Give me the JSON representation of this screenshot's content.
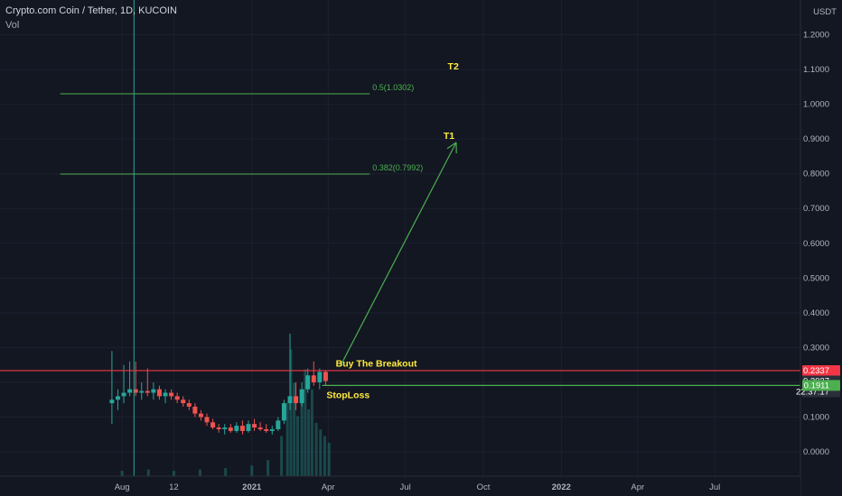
{
  "header": {
    "symbol": "Crypto.com Coin / Tether, 1D, KUCOIN",
    "indicator": "Vol"
  },
  "currency": "USDT",
  "colors": {
    "background": "#131722",
    "grid": "#1c2030",
    "axis_text": "#b2b5be",
    "up": "#26a69a",
    "down": "#ef5350",
    "fib": "#4caf50",
    "annotation_text": "#ffeb3b",
    "resistance": "#f23645",
    "support": "#4caf50",
    "arrow": "#4caf50",
    "crosshair": "#26a69a",
    "countdown_badge": "#2a2e39"
  },
  "chart_data": {
    "type": "candlestick",
    "y_axis": {
      "min": -0.07,
      "max": 1.3,
      "ticks": [
        "1.2000",
        "1.1000",
        "1.0000",
        "0.9000",
        "0.8000",
        "0.7000",
        "0.6000",
        "0.5000",
        "0.4000",
        "0.3000",
        "0.2000",
        "0.1000",
        "0.0000"
      ],
      "tick_values": [
        1.2,
        1.1,
        1.0,
        0.9,
        0.8,
        0.7,
        0.6,
        0.5,
        0.4,
        0.3,
        0.2,
        0.1,
        0.0
      ]
    },
    "x_axis": {
      "ticks": [
        "Aug",
        "12",
        "2021",
        "Apr",
        "Jul",
        "Oct",
        "2022",
        "Apr",
        "Jul"
      ],
      "tick_dates": [
        "2020-08-01",
        "2020-10-01",
        "2021-01-01",
        "2021-04-01",
        "2021-07-01",
        "2021-10-01",
        "2022-01-01",
        "2022-04-01",
        "2022-07-01"
      ],
      "range": [
        "2020-03-10",
        "2022-10-10"
      ]
    },
    "candles": [
      {
        "date": "2020-07-20",
        "o": 0.14,
        "h": 0.29,
        "l": 0.08,
        "c": 0.15
      },
      {
        "date": "2020-07-27",
        "o": 0.15,
        "h": 0.18,
        "l": 0.12,
        "c": 0.16
      },
      {
        "date": "2020-08-03",
        "o": 0.16,
        "h": 0.25,
        "l": 0.14,
        "c": 0.17
      },
      {
        "date": "2020-08-10",
        "o": 0.17,
        "h": 0.26,
        "l": 0.16,
        "c": 0.18
      },
      {
        "date": "2020-08-17",
        "o": 0.18,
        "h": 0.26,
        "l": 0.16,
        "c": 0.17
      },
      {
        "date": "2020-08-24",
        "o": 0.17,
        "h": 0.2,
        "l": 0.15,
        "c": 0.175
      },
      {
        "date": "2020-08-31",
        "o": 0.175,
        "h": 0.24,
        "l": 0.16,
        "c": 0.17
      },
      {
        "date": "2020-09-07",
        "o": 0.17,
        "h": 0.2,
        "l": 0.15,
        "c": 0.18
      },
      {
        "date": "2020-09-14",
        "o": 0.18,
        "h": 0.19,
        "l": 0.15,
        "c": 0.16
      },
      {
        "date": "2020-09-21",
        "o": 0.16,
        "h": 0.18,
        "l": 0.14,
        "c": 0.17
      },
      {
        "date": "2020-09-28",
        "o": 0.17,
        "h": 0.18,
        "l": 0.15,
        "c": 0.16
      },
      {
        "date": "2020-10-05",
        "o": 0.16,
        "h": 0.17,
        "l": 0.14,
        "c": 0.15
      },
      {
        "date": "2020-10-12",
        "o": 0.15,
        "h": 0.16,
        "l": 0.13,
        "c": 0.14
      },
      {
        "date": "2020-10-19",
        "o": 0.14,
        "h": 0.15,
        "l": 0.12,
        "c": 0.13
      },
      {
        "date": "2020-10-26",
        "o": 0.13,
        "h": 0.14,
        "l": 0.1,
        "c": 0.11
      },
      {
        "date": "2020-11-02",
        "o": 0.11,
        "h": 0.12,
        "l": 0.09,
        "c": 0.1
      },
      {
        "date": "2020-11-09",
        "o": 0.1,
        "h": 0.11,
        "l": 0.075,
        "c": 0.085
      },
      {
        "date": "2020-11-16",
        "o": 0.085,
        "h": 0.095,
        "l": 0.065,
        "c": 0.07
      },
      {
        "date": "2020-11-23",
        "o": 0.07,
        "h": 0.08,
        "l": 0.055,
        "c": 0.065
      },
      {
        "date": "2020-11-30",
        "o": 0.065,
        "h": 0.08,
        "l": 0.05,
        "c": 0.07
      },
      {
        "date": "2020-12-07",
        "o": 0.07,
        "h": 0.08,
        "l": 0.055,
        "c": 0.06
      },
      {
        "date": "2020-12-14",
        "o": 0.06,
        "h": 0.085,
        "l": 0.055,
        "c": 0.075
      },
      {
        "date": "2020-12-21",
        "o": 0.075,
        "h": 0.09,
        "l": 0.05,
        "c": 0.06
      },
      {
        "date": "2020-12-28",
        "o": 0.06,
        "h": 0.09,
        "l": 0.055,
        "c": 0.08
      },
      {
        "date": "2021-01-04",
        "o": 0.08,
        "h": 0.095,
        "l": 0.06,
        "c": 0.07
      },
      {
        "date": "2021-01-11",
        "o": 0.07,
        "h": 0.085,
        "l": 0.06,
        "c": 0.065
      },
      {
        "date": "2021-01-18",
        "o": 0.065,
        "h": 0.08,
        "l": 0.055,
        "c": 0.06
      },
      {
        "date": "2021-01-25",
        "o": 0.06,
        "h": 0.075,
        "l": 0.05,
        "c": 0.065
      },
      {
        "date": "2021-02-01",
        "o": 0.065,
        "h": 0.1,
        "l": 0.06,
        "c": 0.09
      },
      {
        "date": "2021-02-08",
        "o": 0.09,
        "h": 0.15,
        "l": 0.08,
        "c": 0.14
      },
      {
        "date": "2021-02-15",
        "o": 0.14,
        "h": 0.34,
        "l": 0.12,
        "c": 0.16
      },
      {
        "date": "2021-02-22",
        "o": 0.16,
        "h": 0.2,
        "l": 0.12,
        "c": 0.14
      },
      {
        "date": "2021-03-01",
        "o": 0.14,
        "h": 0.2,
        "l": 0.13,
        "c": 0.18
      },
      {
        "date": "2021-03-08",
        "o": 0.18,
        "h": 0.24,
        "l": 0.17,
        "c": 0.22
      },
      {
        "date": "2021-03-15",
        "o": 0.22,
        "h": 0.26,
        "l": 0.19,
        "c": 0.2
      },
      {
        "date": "2021-03-22",
        "o": 0.2,
        "h": 0.24,
        "l": 0.18,
        "c": 0.23
      },
      {
        "date": "2021-03-29",
        "o": 0.23,
        "h": 0.235,
        "l": 0.19,
        "c": 0.2037
      }
    ],
    "volume": [
      {
        "date": "2020-08-01",
        "v": 0.04
      },
      {
        "date": "2020-09-01",
        "v": 0.05
      },
      {
        "date": "2020-10-01",
        "v": 0.04
      },
      {
        "date": "2020-11-01",
        "v": 0.05
      },
      {
        "date": "2020-12-01",
        "v": 0.06
      },
      {
        "date": "2021-01-01",
        "v": 0.08
      },
      {
        "date": "2021-01-20",
        "v": 0.12
      },
      {
        "date": "2021-02-05",
        "v": 0.3
      },
      {
        "date": "2021-02-12",
        "v": 0.55
      },
      {
        "date": "2021-02-16",
        "v": 0.95
      },
      {
        "date": "2021-02-20",
        "v": 0.7
      },
      {
        "date": "2021-02-24",
        "v": 0.45
      },
      {
        "date": "2021-03-01",
        "v": 0.6
      },
      {
        "date": "2021-03-05",
        "v": 0.8
      },
      {
        "date": "2021-03-09",
        "v": 0.5
      },
      {
        "date": "2021-03-13",
        "v": 0.65
      },
      {
        "date": "2021-03-18",
        "v": 0.4
      },
      {
        "date": "2021-03-23",
        "v": 0.35
      },
      {
        "date": "2021-03-28",
        "v": 0.3
      },
      {
        "date": "2021-04-02",
        "v": 0.25
      }
    ],
    "volume_scale_max": 1.0,
    "fib_levels": [
      {
        "label": "0.5(1.0302)",
        "price": 1.0302,
        "start": "2020-05-20",
        "end": "2021-05-20"
      },
      {
        "label": "0.382(0.7992)",
        "price": 0.7992,
        "start": "2020-05-20",
        "end": "2021-05-20"
      }
    ],
    "annotations": [
      {
        "text": "T2",
        "date": "2021-08-20",
        "price": 1.1
      },
      {
        "text": "T1",
        "date": "2021-08-15",
        "price": 0.9
      },
      {
        "text": "Buy The Breakout",
        "date": "2021-04-10",
        "price": 0.245
      },
      {
        "text": "StopLoss",
        "date": "2021-03-30",
        "price": 0.155
      }
    ],
    "arrow": {
      "from_date": "2021-04-15",
      "from_price": 0.245,
      "to_date": "2021-08-30",
      "to_price": 0.89
    },
    "resistance": {
      "price": 0.2337,
      "label": "0.2337"
    },
    "support": {
      "price": 0.1911,
      "label": "0.1911"
    },
    "last_price": {
      "price": 0.2037,
      "label": "0.2037",
      "countdown": "22:37:17"
    },
    "crosshair_date": "2020-08-15"
  }
}
